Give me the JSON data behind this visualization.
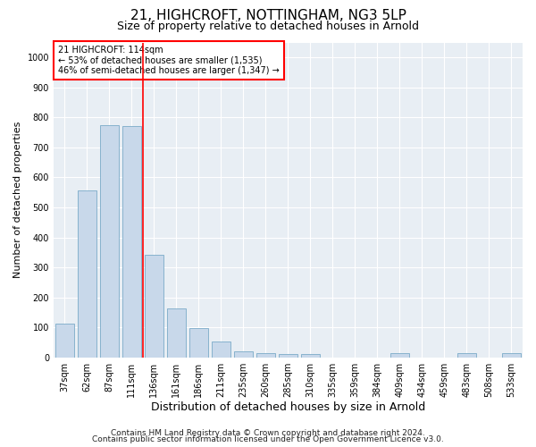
{
  "title1": "21, HIGHCROFT, NOTTINGHAM, NG3 5LP",
  "title2": "Size of property relative to detached houses in Arnold",
  "xlabel": "Distribution of detached houses by size in Arnold",
  "ylabel": "Number of detached properties",
  "categories": [
    "37sqm",
    "62sqm",
    "87sqm",
    "111sqm",
    "136sqm",
    "161sqm",
    "186sqm",
    "211sqm",
    "235sqm",
    "260sqm",
    "285sqm",
    "310sqm",
    "335sqm",
    "359sqm",
    "384sqm",
    "409sqm",
    "434sqm",
    "459sqm",
    "483sqm",
    "508sqm",
    "533sqm"
  ],
  "values": [
    113,
    557,
    775,
    770,
    343,
    163,
    98,
    52,
    20,
    15,
    10,
    10,
    0,
    0,
    0,
    13,
    0,
    0,
    13,
    0,
    13
  ],
  "bar_color": "#c8d8ea",
  "bar_edge_color": "#7aaac8",
  "vline_color": "red",
  "annotation_text_line1": "21 HIGHCROFT: 114sqm",
  "annotation_text_line2": "← 53% of detached houses are smaller (1,535)",
  "annotation_text_line3": "46% of semi-detached houses are larger (1,347) →",
  "annotation_box_color": "#ffffff",
  "annotation_box_edge_color": "red",
  "ylim": [
    0,
    1050
  ],
  "yticks": [
    0,
    100,
    200,
    300,
    400,
    500,
    600,
    700,
    800,
    900,
    1000
  ],
  "background_color": "#e8eef4",
  "grid_color": "#ffffff",
  "footer1": "Contains HM Land Registry data © Crown copyright and database right 2024.",
  "footer2": "Contains public sector information licensed under the Open Government Licence v3.0.",
  "title1_fontsize": 11,
  "title2_fontsize": 9,
  "xlabel_fontsize": 9,
  "ylabel_fontsize": 8,
  "tick_fontsize": 7,
  "footer_fontsize": 6.5
}
